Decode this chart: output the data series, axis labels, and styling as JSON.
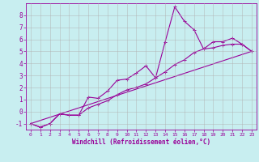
{
  "xlabel": "Windchill (Refroidissement éolien,°C)",
  "background_color": "#c8eef0",
  "line_color": "#990099",
  "grid_color": "#b0b0b0",
  "xlim": [
    -0.5,
    23.5
  ],
  "ylim": [
    -1.5,
    9.0
  ],
  "xticks": [
    0,
    1,
    2,
    3,
    4,
    5,
    6,
    7,
    8,
    9,
    10,
    11,
    12,
    13,
    14,
    15,
    16,
    17,
    18,
    19,
    20,
    21,
    22,
    23
  ],
  "yticks": [
    -1,
    0,
    1,
    2,
    3,
    4,
    5,
    6,
    7,
    8
  ],
  "line1_x": [
    0,
    1,
    2,
    3,
    4,
    5,
    6,
    7,
    8,
    9,
    10,
    11,
    12,
    13,
    14,
    15,
    16,
    17,
    18,
    19,
    20,
    21,
    22,
    23
  ],
  "line1_y": [
    -1.0,
    -1.3,
    -1.0,
    -0.2,
    -0.3,
    -0.3,
    1.2,
    1.1,
    1.7,
    2.6,
    2.7,
    3.2,
    3.8,
    2.8,
    5.8,
    8.7,
    7.5,
    6.8,
    5.2,
    5.8,
    5.8,
    6.1,
    5.6,
    5.0
  ],
  "line2_x": [
    0,
    1,
    2,
    3,
    4,
    5,
    6,
    7,
    8,
    9,
    10,
    11,
    12,
    13,
    14,
    15,
    16,
    17,
    18,
    19,
    20,
    21,
    22,
    23
  ],
  "line2_y": [
    -1.0,
    -1.3,
    -1.0,
    -0.2,
    -0.3,
    -0.3,
    0.3,
    0.6,
    0.9,
    1.4,
    1.8,
    2.0,
    2.3,
    2.8,
    3.3,
    3.9,
    4.3,
    4.9,
    5.2,
    5.3,
    5.5,
    5.6,
    5.6,
    5.0
  ],
  "line3_x": [
    0,
    23
  ],
  "line3_y": [
    -1.0,
    5.0
  ],
  "markersize": 3,
  "linewidth": 0.8
}
